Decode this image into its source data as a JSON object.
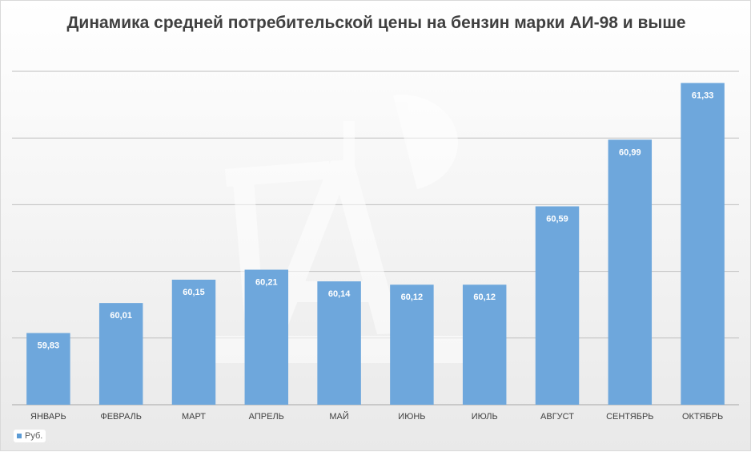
{
  "chart_data": {
    "type": "bar",
    "title": "Динамика средней потребительской цены на бензин марки АИ-98 и выше",
    "categories": [
      "ЯНВАРЬ",
      "ФЕВРАЛЬ",
      "МАРТ",
      "АПРЕЛЬ",
      "МАЙ",
      "ИЮНЬ",
      "ИЮЛЬ",
      "АВГУСТ",
      "СЕНТЯБРЬ",
      "ОКТЯБРЬ"
    ],
    "series": [
      {
        "name": "Руб.",
        "values": [
          59.83,
          60.01,
          60.15,
          60.21,
          60.14,
          60.12,
          60.12,
          60.59,
          60.99,
          61.33
        ],
        "labels": [
          "59,83",
          "60,01",
          "60,15",
          "60,21",
          "60,14",
          "60,12",
          "60,12",
          "60,59",
          "60,99",
          "61,33"
        ]
      }
    ],
    "xlabel": "",
    "ylabel": "",
    "ylim": [
      59.4,
      61.4
    ],
    "grid": true,
    "y_ticks_shown": false,
    "legend_position": "bottom-left",
    "colors": {
      "bar": "#6ea7dc",
      "grid": "#bfbfbf",
      "label": "#ffffff",
      "axis_text": "#404040"
    }
  },
  "legend": {
    "label": "Руб."
  },
  "watermark": {
    "icon": "oil-pump-watermark-icon"
  }
}
